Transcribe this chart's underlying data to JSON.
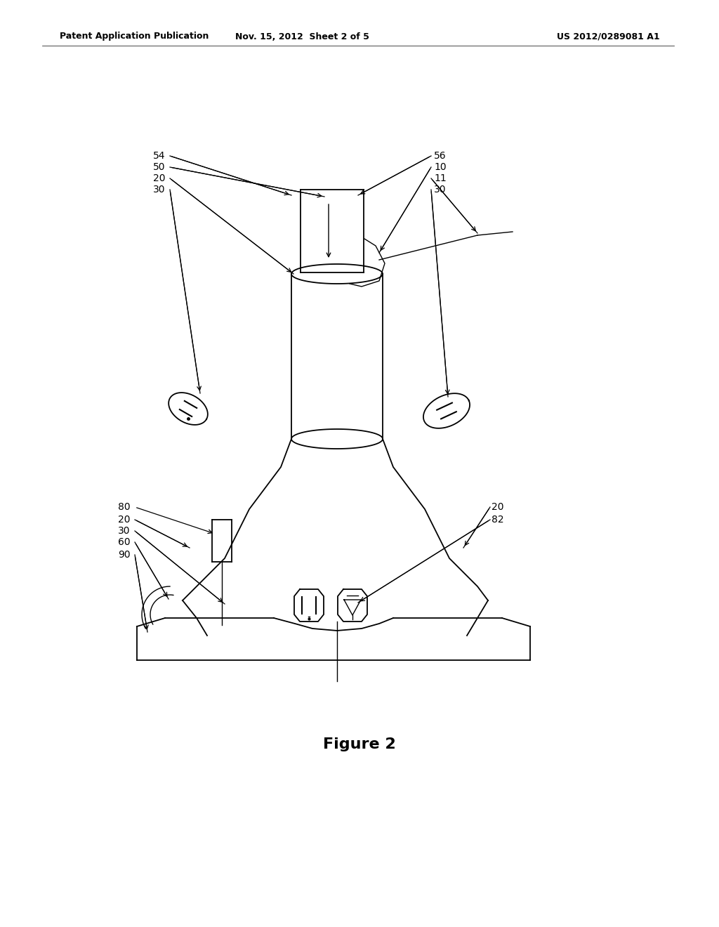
{
  "bg_color": "#ffffff",
  "title_left": "Patent Application Publication",
  "title_center": "Nov. 15, 2012  Sheet 2 of 5",
  "title_right": "US 2012/0289081 A1",
  "figure_label": "Figure 2",
  "font_size_header": 9,
  "font_size_label": 10,
  "font_size_figure": 16
}
